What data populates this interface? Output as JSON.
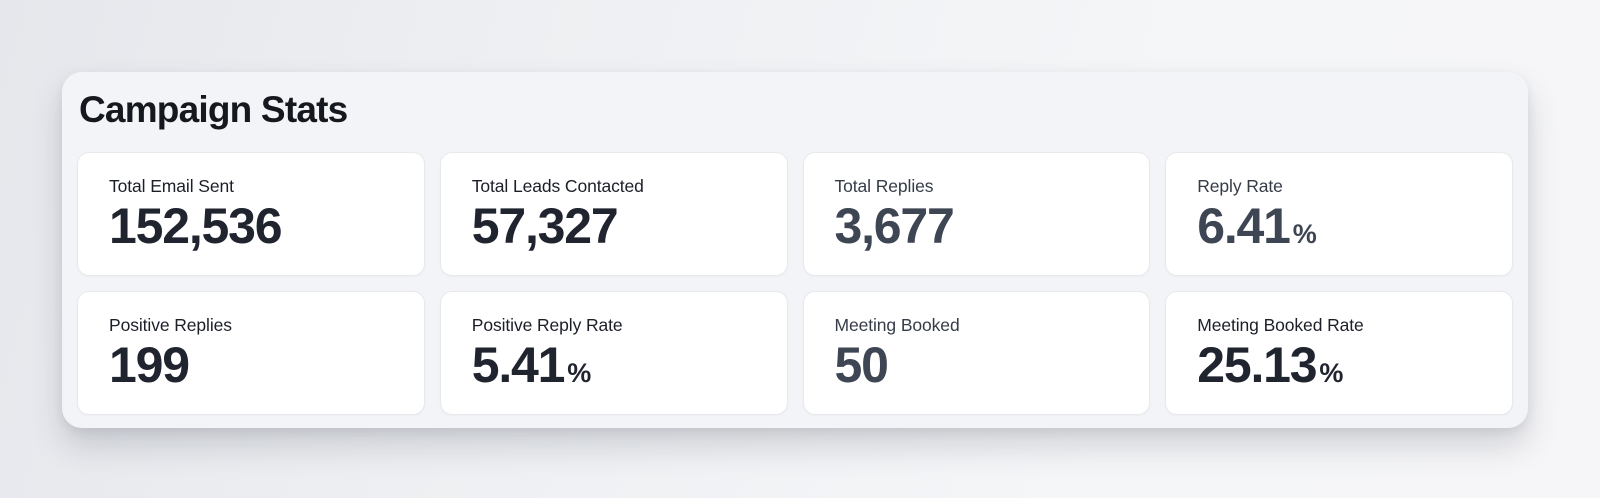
{
  "panel": {
    "title": "Campaign Stats"
  },
  "colors": {
    "panel_bg": "#f3f4f7",
    "card_bg": "#ffffff",
    "card_border": "#e8e9ed",
    "title_color": "#15181f",
    "value_dark": "#20242e",
    "value_slate": "#3e4553"
  },
  "stats": [
    {
      "label": "Total Email Sent",
      "value": "152,536",
      "suffix": "",
      "tone": "dark"
    },
    {
      "label": "Total Leads Contacted",
      "value": "57,327",
      "suffix": "",
      "tone": "dark"
    },
    {
      "label": "Total Replies",
      "value": "3,677",
      "suffix": "",
      "tone": "slate"
    },
    {
      "label": "Reply Rate",
      "value": "6.41",
      "suffix": "%",
      "tone": "slate"
    },
    {
      "label": "Positive Replies",
      "value": "199",
      "suffix": "",
      "tone": "dark"
    },
    {
      "label": "Positive Reply Rate",
      "value": "5.41",
      "suffix": "%",
      "tone": "dark"
    },
    {
      "label": "Meeting Booked",
      "value": "50",
      "suffix": "",
      "tone": "slate"
    },
    {
      "label": "Meeting Booked Rate",
      "value": "25.13",
      "suffix": "%",
      "tone": "dark"
    }
  ]
}
